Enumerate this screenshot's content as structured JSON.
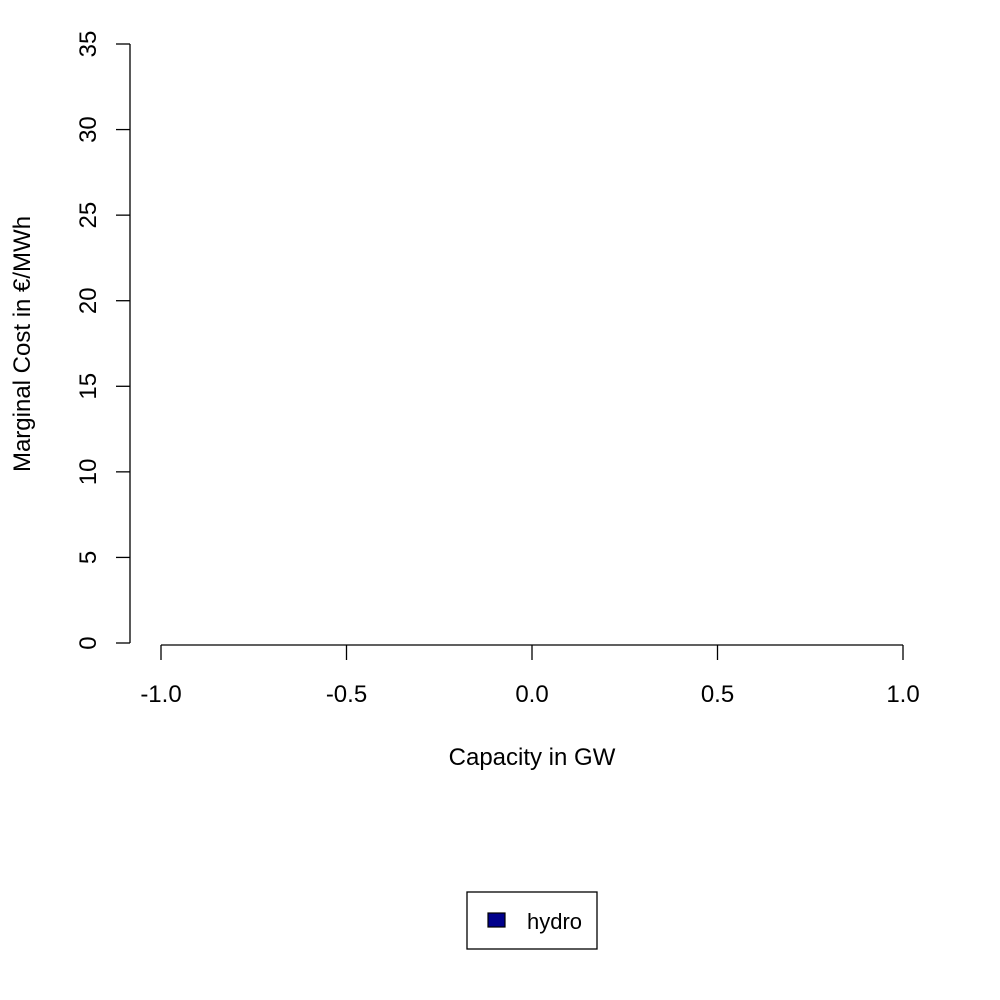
{
  "chart_data": {
    "type": "bar",
    "title": "",
    "xlabel": "Capacity in GW",
    "ylabel": "Marginal Cost in €/MWh",
    "xlim": [
      -1.0,
      1.0
    ],
    "ylim": [
      0,
      35
    ],
    "xticks": [
      "-1.0",
      "-0.5",
      "0.0",
      "0.5",
      "1.0"
    ],
    "xtick_values": [
      -1.0,
      -0.5,
      0.0,
      0.5,
      1.0
    ],
    "yticks": [
      "0",
      "5",
      "10",
      "15",
      "20",
      "25",
      "30",
      "35"
    ],
    "ytick_values": [
      0,
      5,
      10,
      15,
      20,
      25,
      30,
      35
    ],
    "grid": false,
    "legend_position": "bottom-center",
    "series": [
      {
        "name": "hydro",
        "color": "#00008B",
        "values": []
      }
    ]
  }
}
